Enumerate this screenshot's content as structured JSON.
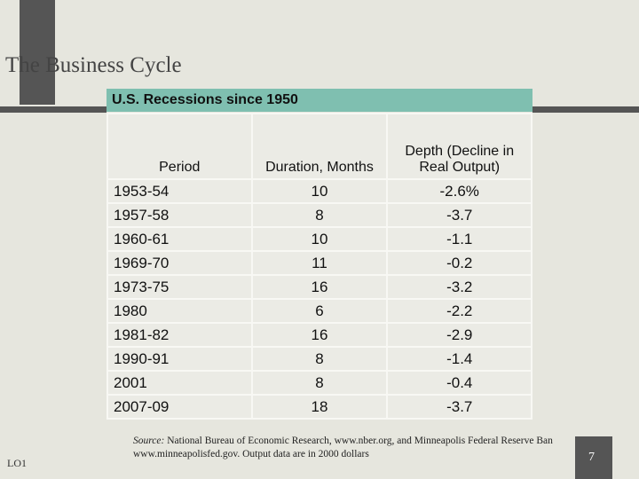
{
  "slide": {
    "title": "The Business Cycle",
    "table": {
      "caption": "U.S. Recessions since 1950",
      "headers": [
        "Period",
        "Duration, Months",
        "Depth (Decline in Real Output)"
      ],
      "rows": [
        [
          "1953-54",
          "10",
          "-2.6%"
        ],
        [
          "1957-58",
          "8",
          "-3.7"
        ],
        [
          "1960-61",
          "10",
          "-1.1"
        ],
        [
          "1969-70",
          "11",
          "-0.2"
        ],
        [
          "1973-75",
          "16",
          "-3.2"
        ],
        [
          "1980",
          "6",
          "-2.2"
        ],
        [
          "1981-82",
          "16",
          "-2.9"
        ],
        [
          "1990-91",
          "8",
          "-1.4"
        ],
        [
          "2001",
          "8",
          "-0.4"
        ],
        [
          "2007-09",
          "18",
          "-3.7"
        ]
      ]
    },
    "source_label": "Source:",
    "source_text": "National Bureau of Economic Research, www.nber.org, and Minneapolis Federal Reserve Ban",
    "source_text2": "www.minneapolisfed.gov. Output data are in 2000 dollars",
    "objective": "LO1",
    "page_number": "7"
  }
}
